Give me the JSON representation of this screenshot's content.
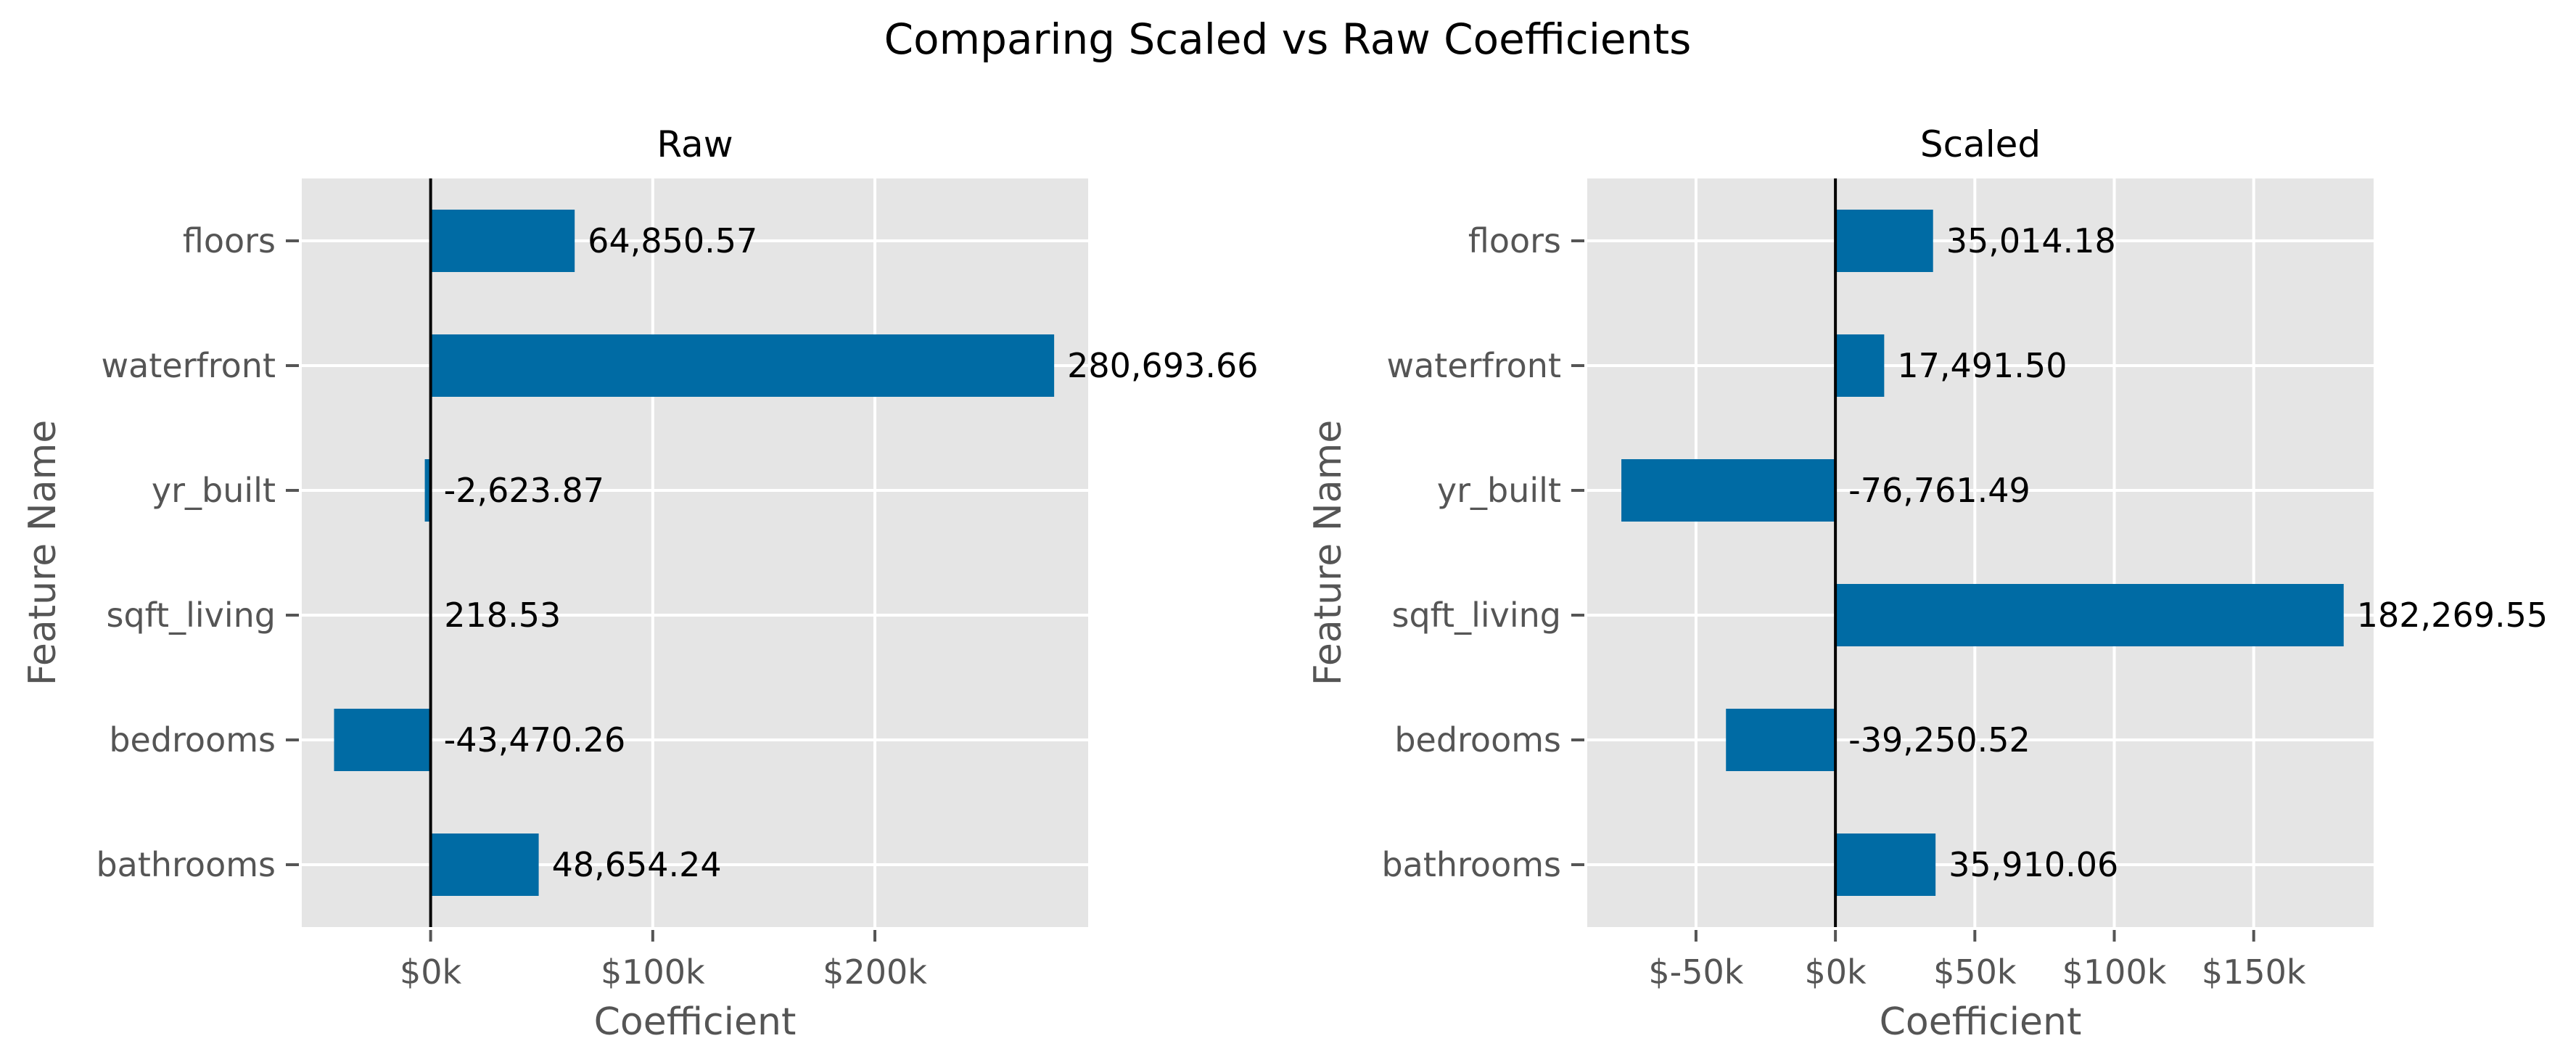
{
  "figure": {
    "title": "Comparing Scaled vs Raw Coefficients"
  },
  "colors": {
    "bar": "#006BA4",
    "panel_bg": "#E5E5E5",
    "grid": "#FFFFFF",
    "zero_line": "#000000",
    "tick_text": "#555555"
  },
  "chart_data": [
    {
      "type": "bar",
      "orientation": "horizontal",
      "title": "Raw",
      "xlabel": "Coefficient",
      "ylabel": "Feature Name",
      "categories": [
        "bathrooms",
        "bedrooms",
        "sqft_living",
        "yr_built",
        "waterfront",
        "floors"
      ],
      "values": [
        48654.24,
        -43470.26,
        218.53,
        -2623.87,
        280693.66,
        64850.57
      ],
      "value_labels": [
        "48,654.24",
        "-43,470.26",
        "218.53",
        "-2,623.87",
        "280,693.66",
        "64,850.57"
      ],
      "xlim": [
        -58000,
        296000
      ],
      "xticks": [
        0,
        100000,
        200000
      ],
      "xtick_labels": [
        "$0k",
        "$100k",
        "$200k"
      ],
      "grid": true
    },
    {
      "type": "bar",
      "orientation": "horizontal",
      "title": "Scaled",
      "xlabel": "Coefficient",
      "ylabel": "Feature Name",
      "categories": [
        "bathrooms",
        "bedrooms",
        "sqft_living",
        "yr_built",
        "waterfront",
        "floors"
      ],
      "values": [
        35910.06,
        -39250.52,
        182269.55,
        -76761.49,
        17491.5,
        35014.18
      ],
      "value_labels": [
        "35,910.06",
        "-39,250.52",
        "182,269.55",
        "-76,761.49",
        "17,491.50",
        "35,014.18"
      ],
      "xlim": [
        -89000,
        193000
      ],
      "xticks": [
        -50000,
        0,
        50000,
        100000,
        150000
      ],
      "xtick_labels": [
        "$-50k",
        "$0k",
        "$50k",
        "$100k",
        "$150k"
      ],
      "grid": true
    }
  ]
}
